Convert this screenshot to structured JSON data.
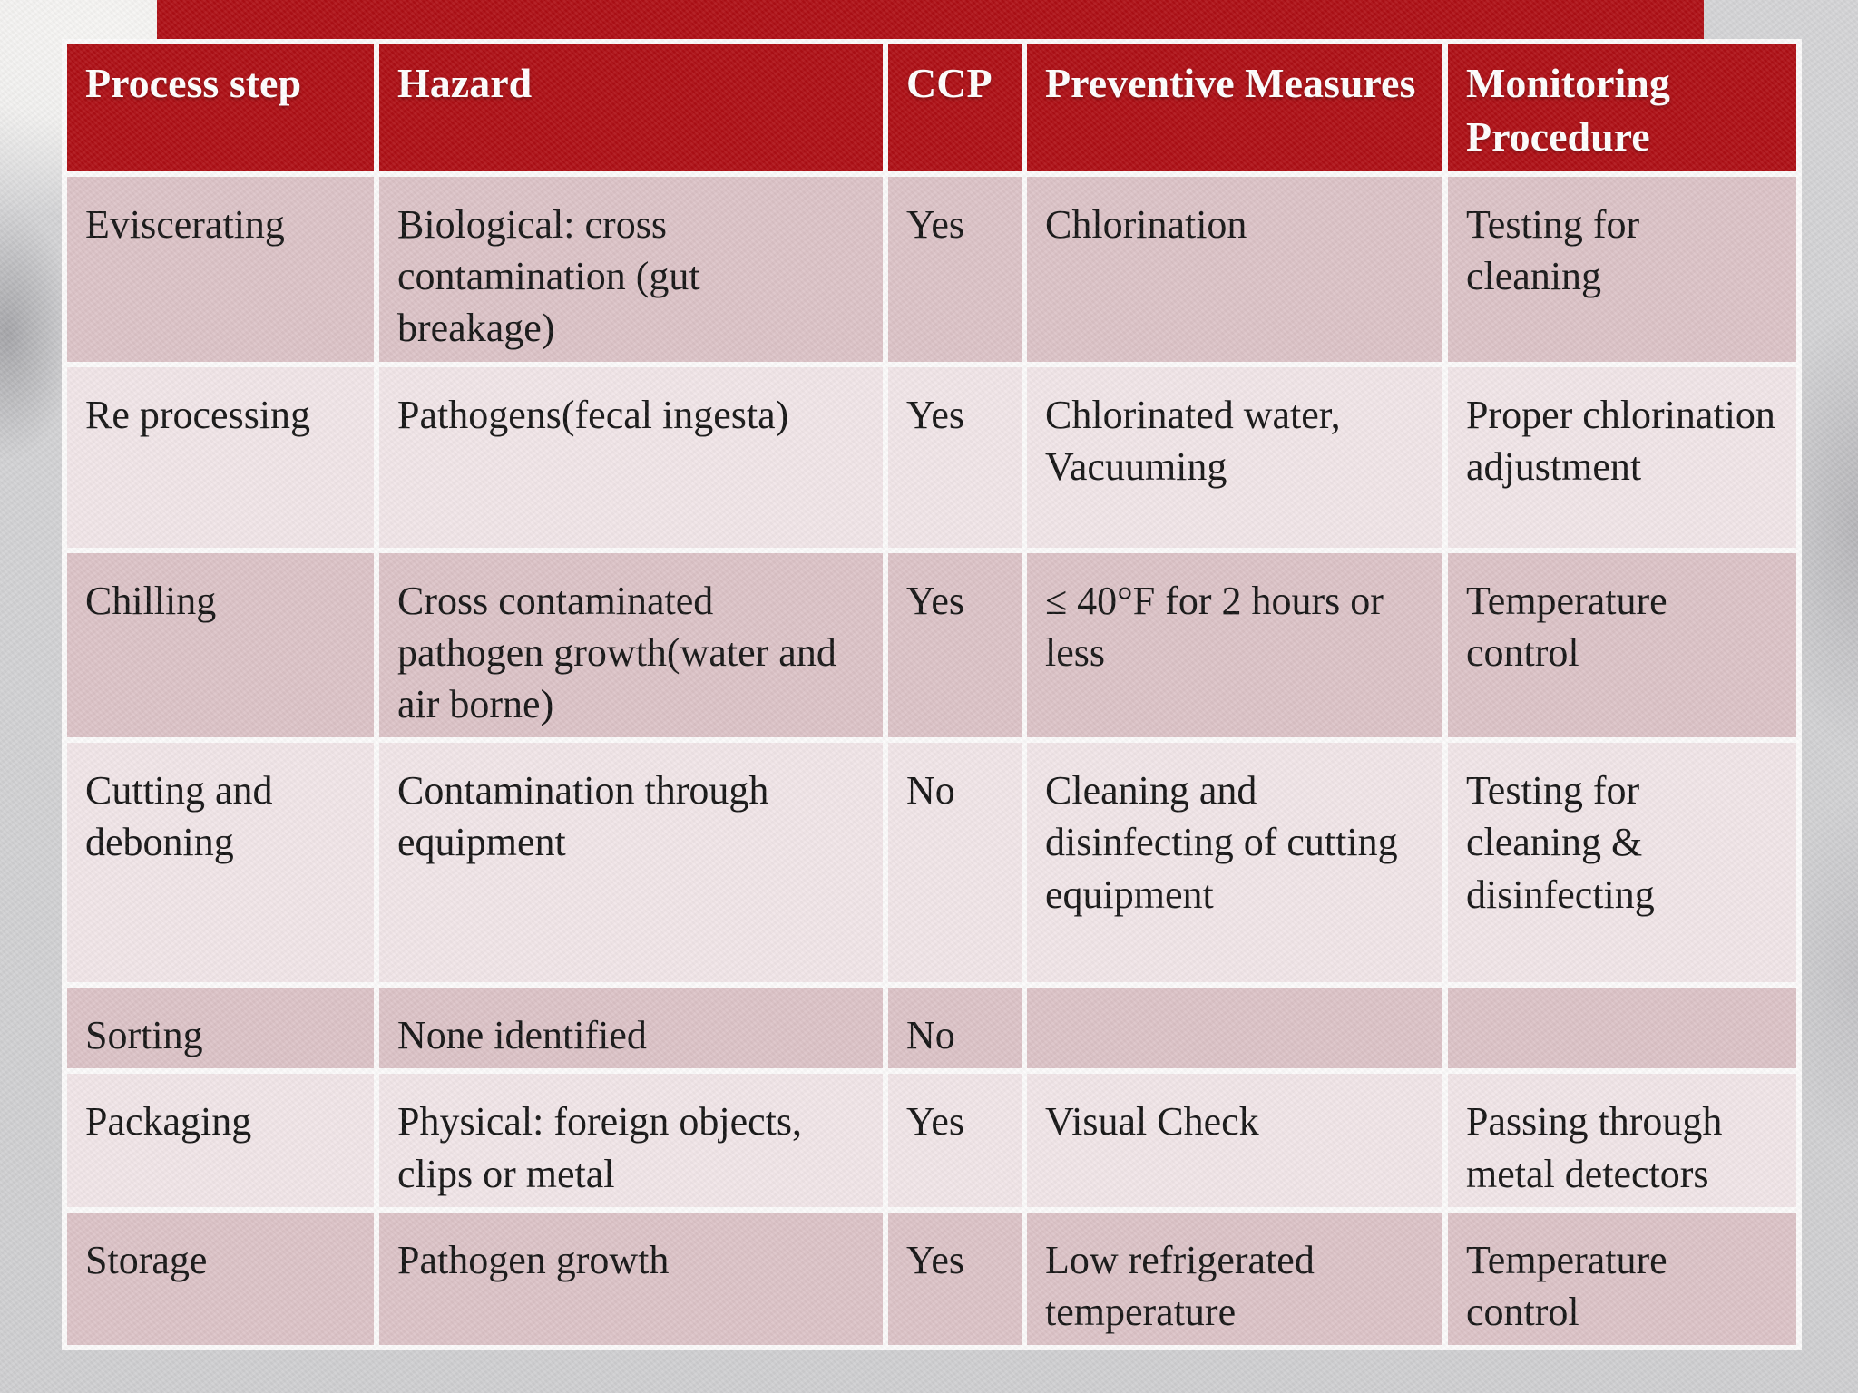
{
  "slide": {
    "type": "presentation-slide",
    "accent_color": "#ae0e14",
    "band_color_dark": "#dcc3c7",
    "band_color_light": "#f1e5e8",
    "background_color": "#d3d3d5",
    "border_color": "#fcfbfb",
    "text_color": "#141414",
    "header_text_color": "#ffffff"
  },
  "table": {
    "columns": [
      "Process step",
      "Hazard",
      "CCP",
      "Preventive Measures",
      "Monitoring Procedure"
    ],
    "rows": [
      {
        "process_step": "Eviscerating",
        "hazard": "Biological: cross contamination (gut breakage)",
        "ccp": "Yes",
        "preventive_measures": "Chlorination",
        "monitoring_procedure": "Testing for cleaning"
      },
      {
        "process_step": "Re processing",
        "hazard": "Pathogens(fecal ingesta)",
        "ccp": "Yes",
        "preventive_measures": "Chlorinated water, Vacuuming",
        "monitoring_procedure": "Proper chlorination adjustment"
      },
      {
        "process_step": "Chilling",
        "hazard": "Cross contaminated pathogen growth(water and air borne)",
        "ccp": "Yes",
        "preventive_measures": "≤ 40°F for 2 hours or less",
        "monitoring_procedure": "Temperature control"
      },
      {
        "process_step": "Cutting and deboning",
        "hazard": "Contamination through equipment",
        "ccp": "No",
        "preventive_measures": "Cleaning and disinfecting of cutting equipment",
        "monitoring_procedure": "Testing for cleaning & disinfecting"
      },
      {
        "process_step": "Sorting",
        "hazard": "None identified",
        "ccp": "No",
        "preventive_measures": "",
        "monitoring_procedure": ""
      },
      {
        "process_step": "Packaging",
        "hazard": "Physical: foreign objects, clips or metal",
        "ccp": "Yes",
        "preventive_measures": "Visual Check",
        "monitoring_procedure": "Passing through metal detectors"
      },
      {
        "process_step": "Storage",
        "hazard": "Pathogen growth",
        "ccp": "Yes",
        "preventive_measures": "Low refrigerated temperature",
        "monitoring_procedure": "Temperature control"
      }
    ]
  }
}
